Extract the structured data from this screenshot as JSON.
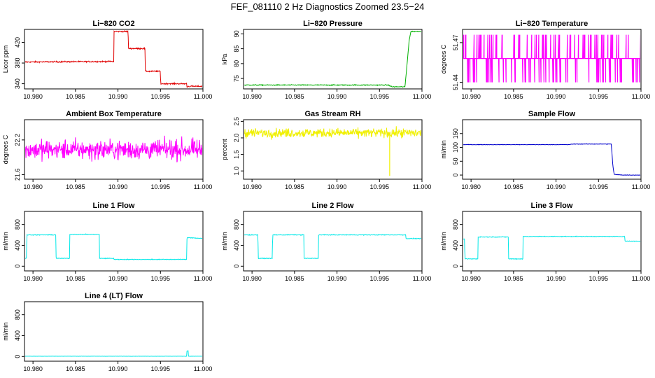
{
  "figure": {
    "title": "FEF_081110  2 Hz Diagnostics Zoomed 23.5−24"
  },
  "chart_data": [
    {
      "type": "line",
      "title": "Li−820 CO2",
      "ylabel": "Licor ppm",
      "xlim": [
        10.979,
        11.0
      ],
      "ylim": [
        330,
        445
      ],
      "xticks": [
        10.98,
        10.985,
        10.99,
        10.995,
        11.0
      ],
      "xtick_labels": [
        "10.980",
        "10.985",
        "10.990",
        "10.995",
        "11.000"
      ],
      "yticks": [
        340,
        380,
        420
      ],
      "ytick_labels": [
        "340",
        "380",
        "420"
      ],
      "color": "#e00000",
      "noise": 1.2,
      "step": true,
      "series": [
        {
          "x": [
            10.979,
            10.9895,
            10.98952,
            10.9912,
            10.99122,
            10.9932,
            10.99322,
            10.995,
            10.99502,
            10.9981,
            10.99812,
            10.9982,
            10.99822,
            11.0
          ],
          "y": [
            382,
            383,
            441,
            441,
            408,
            408,
            364,
            364,
            340,
            340,
            334,
            334,
            335,
            335
          ]
        }
      ]
    },
    {
      "type": "line",
      "title": "Li−820 Pressure",
      "ylabel": "kPa",
      "xlim": [
        10.979,
        11.0
      ],
      "ylim": [
        71.5,
        91.5
      ],
      "xticks": [
        10.98,
        10.985,
        10.99,
        10.995,
        11.0
      ],
      "xtick_labels": [
        "10.980",
        "10.985",
        "10.990",
        "10.995",
        "11.000"
      ],
      "yticks": [
        75,
        80,
        85,
        90
      ],
      "ytick_labels": [
        "75",
        "80",
        "85",
        "90"
      ],
      "color": "#00b000",
      "noise": 0.15,
      "series": [
        {
          "x": [
            10.979,
            10.996,
            10.9965,
            10.998,
            10.9985,
            10.9987,
            11.0
          ],
          "y": [
            72.8,
            72.8,
            72.2,
            72.2,
            88,
            90.8,
            90.8
          ]
        }
      ]
    },
    {
      "type": "line",
      "title": "Li−820 Temperature",
      "ylabel": "degrees C",
      "xlim": [
        10.979,
        11.0
      ],
      "ylim": [
        51.435,
        51.48
      ],
      "xticks": [
        10.98,
        10.985,
        10.99,
        10.995,
        11.0
      ],
      "xtick_labels": [
        "10.980",
        "10.985",
        "10.990",
        "10.995",
        "11.000"
      ],
      "yticks": [
        51.44,
        51.47
      ],
      "ytick_labels": [
        "51.44",
        "51.47"
      ],
      "color": "#ff00ff",
      "quantized": [
        51.44,
        51.458,
        51.476
      ],
      "series": [
        {
          "x": [
            10.979,
            11.0
          ],
          "y": [
            51.458,
            51.458
          ]
        }
      ]
    },
    {
      "type": "line",
      "title": "Ambient Box Temperature",
      "ylabel": "degrees C",
      "xlim": [
        10.979,
        11.0
      ],
      "ylim": [
        21.52,
        22.55
      ],
      "xticks": [
        10.98,
        10.985,
        10.99,
        10.995,
        11.0
      ],
      "xtick_labels": [
        "10.980",
        "10.985",
        "10.990",
        "10.995",
        "11.000"
      ],
      "yticks": [
        21.6,
        22.2
      ],
      "ytick_labels": [
        "21.6",
        "22.2"
      ],
      "color": "#ff00ff",
      "noise": 0.16,
      "series": [
        {
          "x": [
            10.979,
            11.0
          ],
          "y": [
            22.03,
            22.03
          ]
        }
      ]
    },
    {
      "type": "line",
      "title": "Gas Stream RH",
      "ylabel": "percent",
      "xlim": [
        10.979,
        11.0
      ],
      "ylim": [
        0.75,
        2.55
      ],
      "xticks": [
        10.98,
        10.985,
        10.99,
        10.995,
        11.0
      ],
      "xtick_labels": [
        "10.980",
        "10.985",
        "10.990",
        "10.995",
        "11.000"
      ],
      "yticks": [
        1.0,
        1.5,
        2.0,
        2.5
      ],
      "ytick_labels": [
        "1.0",
        "1.5",
        "2.0",
        "2.5"
      ],
      "color": "#f0f000",
      "noise": 0.13,
      "series": [
        {
          "x": [
            10.979,
            11.0
          ],
          "y": [
            2.15,
            2.15
          ]
        }
      ]
    },
    {
      "type": "line",
      "title": "Sample Flow",
      "ylabel": "ml/min",
      "xlim": [
        10.979,
        11.0
      ],
      "ylim": [
        -15,
        200
      ],
      "xticks": [
        10.98,
        10.985,
        10.99,
        10.995,
        11.0
      ],
      "xtick_labels": [
        "10.980",
        "10.985",
        "10.990",
        "10.995",
        "11.000"
      ],
      "yticks": [
        0,
        50,
        100,
        150
      ],
      "ytick_labels": [
        "0",
        "50",
        "100",
        "150"
      ],
      "color": "#0000cc",
      "noise": 0.8,
      "series": [
        {
          "x": [
            10.979,
            10.9915,
            10.992,
            10.9965,
            10.9967,
            10.99685,
            10.998,
            11.0
          ],
          "y": [
            110,
            110,
            112,
            112,
            30,
            2,
            0,
            0
          ]
        }
      ]
    },
    {
      "type": "line",
      "title": "Line 1 Flow",
      "ylabel": "ml/min",
      "xlim": [
        10.979,
        11.0
      ],
      "ylim": [
        -90,
        1050
      ],
      "xticks": [
        10.98,
        10.985,
        10.99,
        10.995,
        11.0
      ],
      "xtick_labels": [
        "10.980",
        "10.985",
        "10.990",
        "10.995",
        "11.000"
      ],
      "yticks": [
        0,
        400,
        800
      ],
      "ytick_labels": [
        "0",
        "400",
        "800"
      ],
      "color": "#00e8e8",
      "noise": 6,
      "step": true,
      "series": [
        {
          "x": [
            10.979,
            10.97925,
            10.97927,
            10.9827,
            10.98272,
            10.9843,
            10.98432,
            10.9878,
            10.98782,
            10.9895,
            10.98952,
            10.9981,
            10.99812,
            11.0
          ],
          "y": [
            150,
            150,
            600,
            600,
            150,
            150,
            610,
            610,
            150,
            150,
            130,
            130,
            550,
            530
          ]
        }
      ]
    },
    {
      "type": "line",
      "title": "Line 2 Flow",
      "ylabel": "ml/min",
      "xlim": [
        10.979,
        11.0
      ],
      "ylim": [
        -90,
        1050
      ],
      "xticks": [
        10.98,
        10.985,
        10.99,
        10.995,
        11.0
      ],
      "xtick_labels": [
        "10.980",
        "10.985",
        "10.990",
        "10.995",
        "11.000"
      ],
      "yticks": [
        0,
        400,
        800
      ],
      "ytick_labels": [
        "0",
        "400",
        "800"
      ],
      "color": "#00e8e8",
      "noise": 6,
      "step": true,
      "series": [
        {
          "x": [
            10.979,
            10.9807,
            10.98072,
            10.9824,
            10.98242,
            10.9861,
            10.98612,
            10.9878,
            10.98782,
            10.9981,
            10.99812,
            11.0
          ],
          "y": [
            600,
            600,
            150,
            150,
            600,
            600,
            150,
            150,
            600,
            600,
            530,
            530
          ]
        }
      ]
    },
    {
      "type": "line",
      "title": "Line 3 Flow",
      "ylabel": "ml/min",
      "xlim": [
        10.979,
        11.0
      ],
      "ylim": [
        -90,
        1050
      ],
      "xticks": [
        10.98,
        10.985,
        10.99,
        10.995,
        11.0
      ],
      "xtick_labels": [
        "10.980",
        "10.985",
        "10.990",
        "10.995",
        "11.000"
      ],
      "yticks": [
        0,
        400,
        800
      ],
      "ytick_labels": [
        "0",
        "400",
        "800"
      ],
      "color": "#00e8e8",
      "noise": 6,
      "step": true,
      "series": [
        {
          "x": [
            10.979,
            10.97925,
            10.97927,
            10.9808,
            10.98082,
            10.9844,
            10.98442,
            10.9861,
            10.98612,
            10.9981,
            10.99812,
            11.0
          ],
          "y": [
            520,
            520,
            140,
            140,
            560,
            560,
            140,
            140,
            570,
            570,
            480,
            480
          ]
        }
      ]
    },
    {
      "type": "line",
      "title": "Line 4 (LT) Flow",
      "ylabel": "ml/min",
      "xlim": [
        10.979,
        11.0
      ],
      "ylim": [
        -90,
        1050
      ],
      "xticks": [
        10.98,
        10.985,
        10.99,
        10.995,
        11.0
      ],
      "xtick_labels": [
        "10.980",
        "10.985",
        "10.990",
        "10.995",
        "11.000"
      ],
      "yticks": [
        0,
        400,
        800
      ],
      "ytick_labels": [
        "0",
        "400",
        "800"
      ],
      "color": "#00e8e8",
      "noise": 2,
      "series": [
        {
          "x": [
            10.979,
            10.9981,
            10.99812,
            10.99825,
            10.9983,
            11.0
          ],
          "y": [
            5,
            5,
            110,
            110,
            5,
            5
          ]
        }
      ]
    }
  ]
}
